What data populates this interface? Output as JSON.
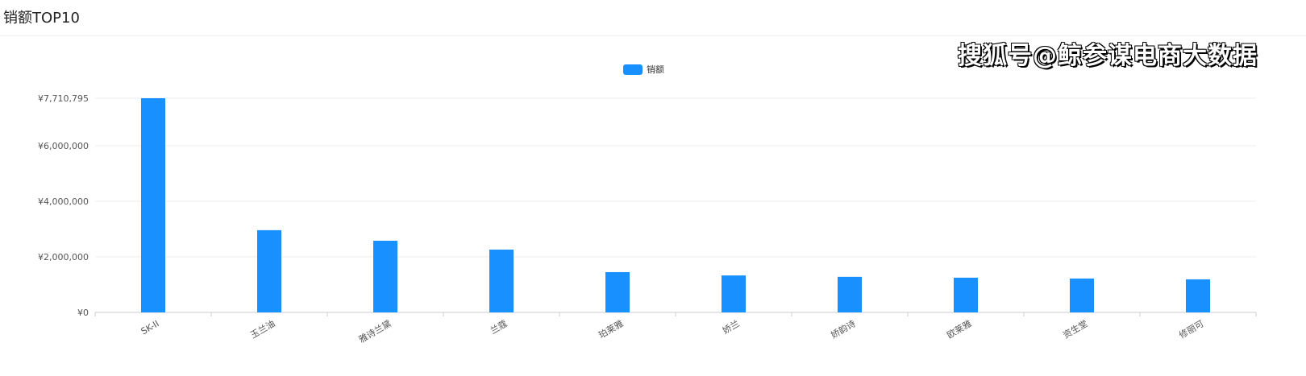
{
  "header": {
    "title": "销额TOP10"
  },
  "watermark": "搜狐号@鲸参谋电商大数据",
  "chart_data": {
    "type": "bar",
    "title": "",
    "xlabel": "",
    "ylabel": "",
    "legend": {
      "position": "top-center",
      "entries": [
        "销额"
      ]
    },
    "categories": [
      "SK-II",
      "玉兰油",
      "雅诗兰黛",
      "兰蔻",
      "珀莱雅",
      "娇兰",
      "娇韵诗",
      "欧莱雅",
      "资生堂",
      "修丽可"
    ],
    "series": [
      {
        "name": "销额",
        "color": "#1890ff",
        "values": [
          7710795,
          2960000,
          2580000,
          2260000,
          1450000,
          1330000,
          1280000,
          1250000,
          1220000,
          1190000
        ]
      }
    ],
    "yticks": [
      0,
      2000000,
      4000000,
      6000000,
      7710795
    ],
    "ytick_labels": [
      "¥0",
      "¥2,000,000",
      "¥4,000,000",
      "¥6,000,000",
      "¥7,710,795"
    ],
    "ylim": [
      0,
      7710795
    ],
    "grid": true
  }
}
